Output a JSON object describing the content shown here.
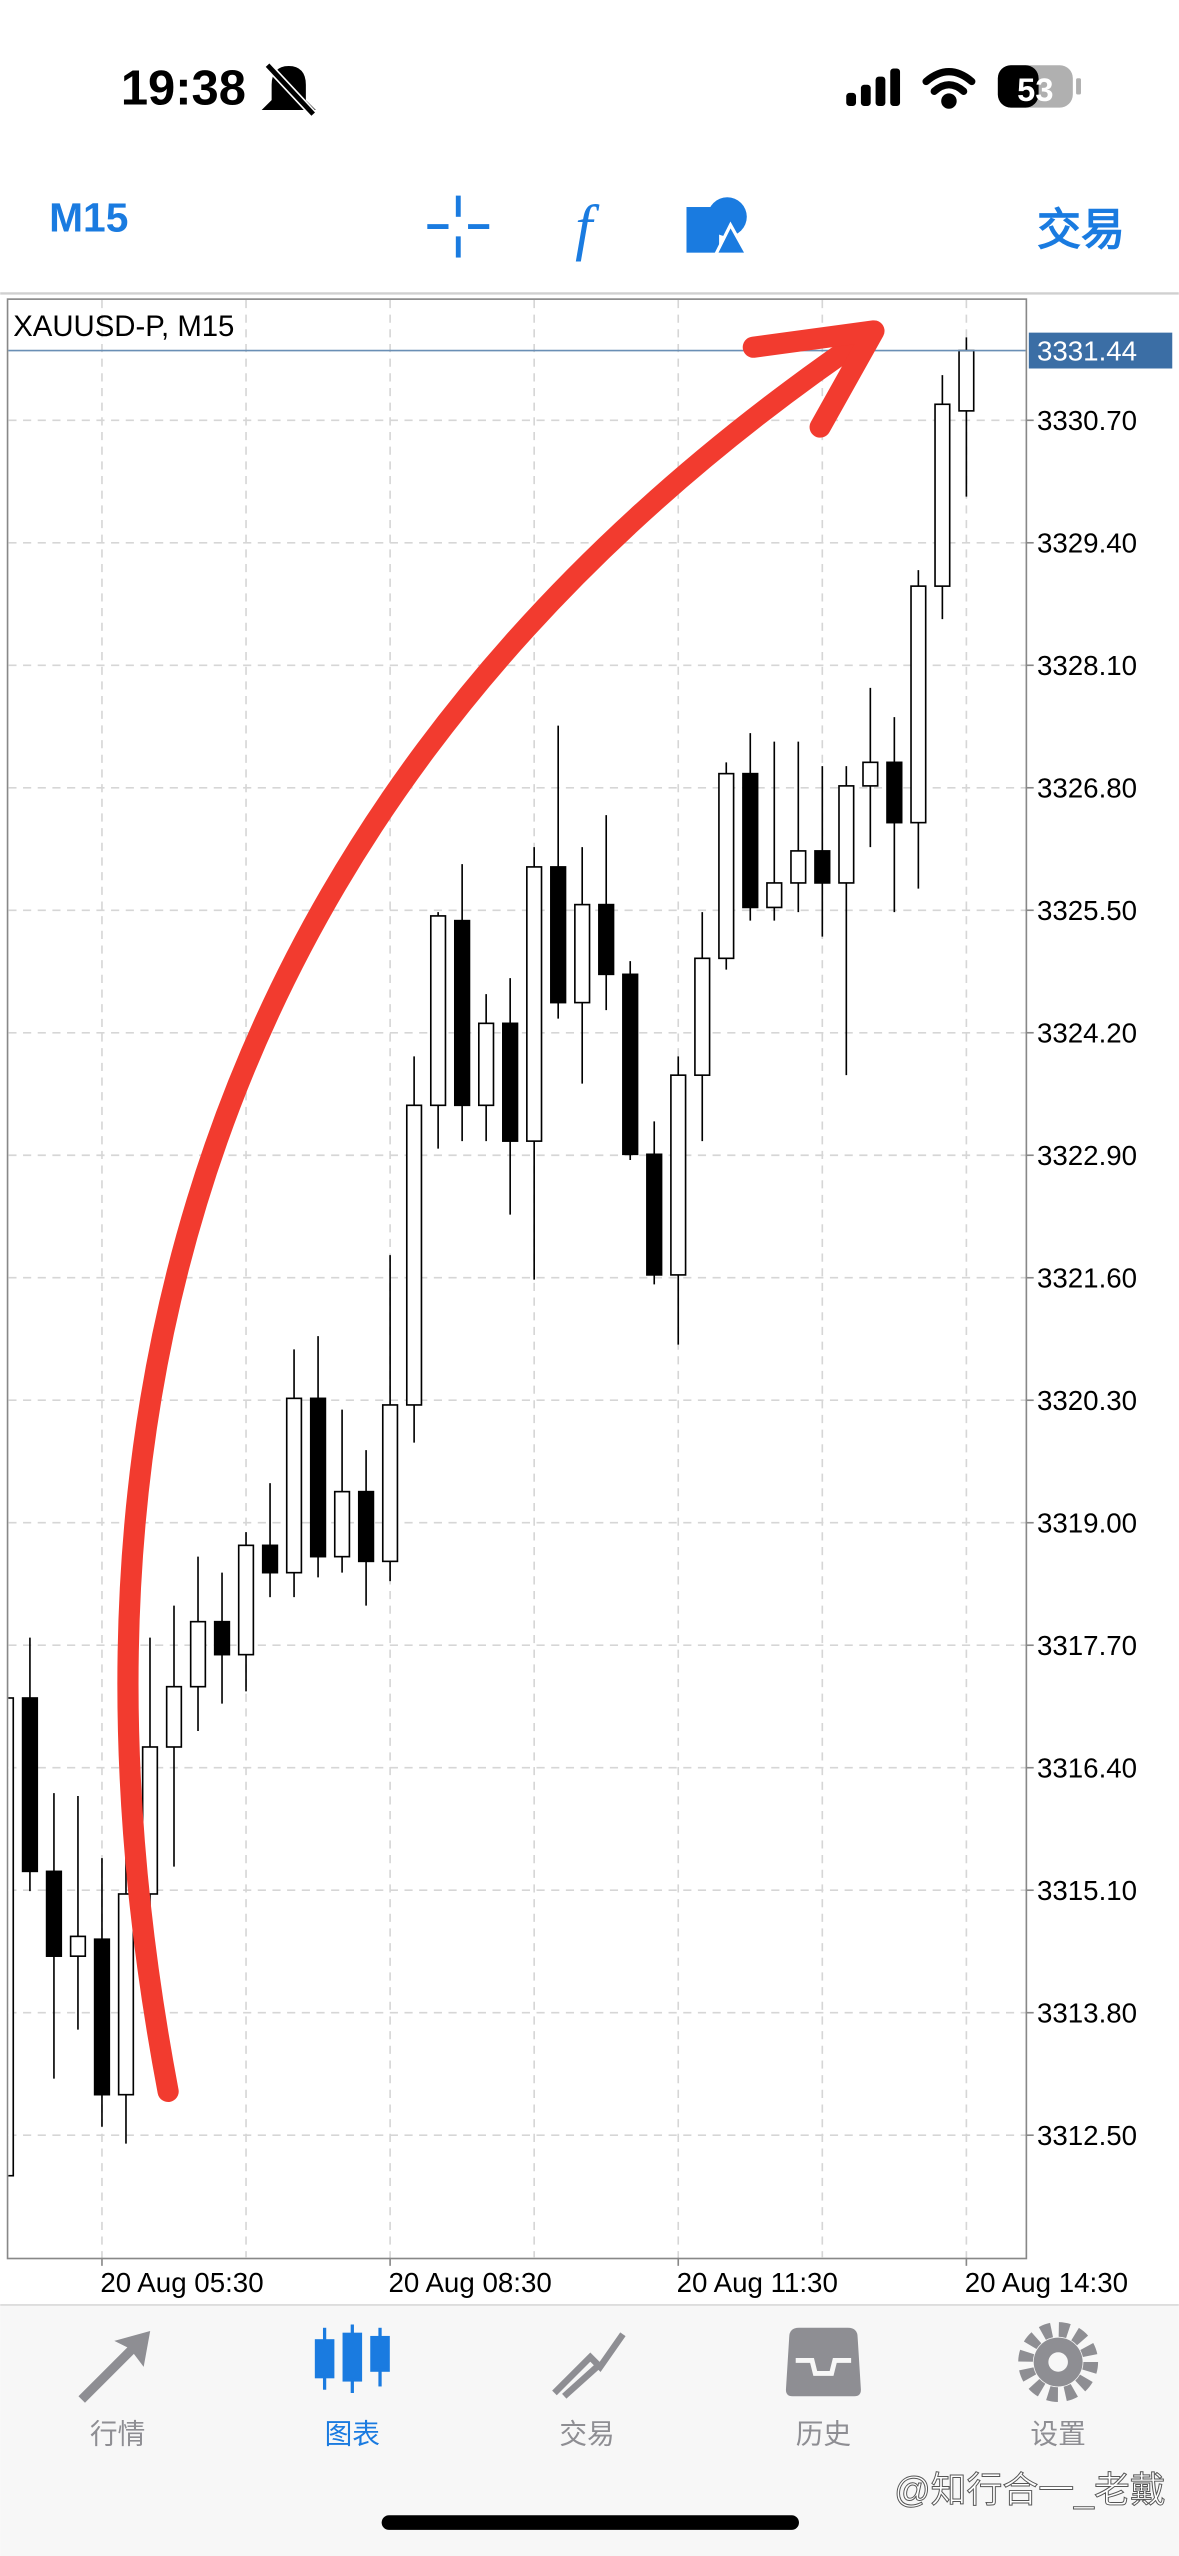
{
  "status_bar": {
    "time": "19:38",
    "battery": "53"
  },
  "toolbar": {
    "timeframe": "M15",
    "trade": "交易"
  },
  "chart_data": {
    "type": "candlestick",
    "title": "XAUUSD-P, M15",
    "categories": [
      null,
      null,
      null,
      null,
      "20 Aug 05:30",
      null,
      null,
      null,
      null,
      null,
      null,
      null,
      null,
      null,
      null,
      null,
      "20 Aug 08:30",
      null,
      null,
      null,
      null,
      null,
      null,
      null,
      null,
      null,
      null,
      null,
      "20 Aug 11:30",
      null,
      null,
      null,
      null,
      null,
      null,
      null,
      null,
      null,
      null,
      null,
      "20 Aug 14:30"
    ],
    "open": [
      3312.07,
      3317.14,
      3315.3,
      3314.4,
      3314.58,
      3312.93,
      3315.06,
      3316.62,
      3317.26,
      3317.95,
      3317.6,
      3318.76,
      3318.47,
      3320.32,
      3318.64,
      3319.33,
      3318.59,
      3320.25,
      3323.43,
      3325.39,
      3323.43,
      3324.3,
      3323.05,
      3325.96,
      3324.52,
      3325.56,
      3324.82,
      3322.91,
      3321.63,
      3323.75,
      3324.99,
      3326.95,
      3325.53,
      3325.79,
      3326.13,
      3325.79,
      3326.82,
      3327.07,
      3326.43,
      3328.94,
      3330.8
    ],
    "high": [
      3317.2,
      3317.78,
      3316.13,
      3316.1,
      3315.44,
      3315.44,
      3317.78,
      3318.12,
      3318.64,
      3318.47,
      3318.9,
      3319.42,
      3320.84,
      3320.98,
      3320.2,
      3319.77,
      3321.84,
      3323.95,
      3325.48,
      3325.99,
      3324.61,
      3324.78,
      3326.17,
      3327.46,
      3326.17,
      3326.51,
      3324.96,
      3323.26,
      3323.95,
      3325.48,
      3327.07,
      3327.38,
      3327.29,
      3327.29,
      3327.03,
      3327.03,
      3327.86,
      3327.55,
      3329.11,
      3331.18,
      3331.58
    ],
    "low": [
      3311.9,
      3315.09,
      3313.1,
      3313.62,
      3312.59,
      3312.41,
      3314.58,
      3315.35,
      3316.79,
      3317.08,
      3317.21,
      3318.21,
      3318.21,
      3318.42,
      3318.47,
      3318.12,
      3318.38,
      3319.85,
      3322.97,
      3323.05,
      3323.05,
      3322.27,
      3321.58,
      3324.35,
      3323.66,
      3324.44,
      3322.85,
      3321.53,
      3320.89,
      3323.05,
      3324.87,
      3325.39,
      3325.39,
      3325.48,
      3325.22,
      3323.75,
      3326.17,
      3325.48,
      3325.73,
      3328.59,
      3329.89
    ],
    "close": [
      3317.14,
      3315.3,
      3314.4,
      3314.61,
      3312.93,
      3315.06,
      3316.62,
      3317.26,
      3317.95,
      3317.6,
      3318.76,
      3318.47,
      3320.32,
      3318.64,
      3319.33,
      3318.59,
      3320.25,
      3323.43,
      3325.44,
      3323.43,
      3324.3,
      3323.05,
      3325.96,
      3324.52,
      3325.56,
      3324.82,
      3322.91,
      3321.63,
      3323.75,
      3324.99,
      3326.95,
      3325.53,
      3325.79,
      3326.13,
      3325.79,
      3326.82,
      3327.07,
      3326.43,
      3328.94,
      3330.87,
      3331.44
    ],
    "up_color": "#ffffff",
    "down_color": "#000000",
    "ylim": [
      3311.2,
      3331.96
    ],
    "yticks": [
      {
        "value": 3330.7,
        "label": "3330.70"
      },
      {
        "value": 3329.4,
        "label": "3329.40"
      },
      {
        "value": 3328.1,
        "label": "3328.10"
      },
      {
        "value": 3326.8,
        "label": "3326.80"
      },
      {
        "value": 3325.5,
        "label": "3325.50"
      },
      {
        "value": 3324.2,
        "label": "3324.20"
      },
      {
        "value": 3322.9,
        "label": "3322.90"
      },
      {
        "value": 3321.6,
        "label": "3321.60"
      },
      {
        "value": 3320.3,
        "label": "3320.30"
      },
      {
        "value": 3319,
        "label": "3319.00"
      },
      {
        "value": 3317.7,
        "label": "3317.70"
      },
      {
        "value": 3316.4,
        "label": "3316.40"
      },
      {
        "value": 3315.1,
        "label": "3315.10"
      },
      {
        "value": 3313.8,
        "label": "3313.80"
      },
      {
        "value": 3312.5,
        "label": "3312.50"
      }
    ],
    "last_price": 3331.44,
    "grid": true
  },
  "tab_bar": {
    "tabs": [
      "行情",
      "图表",
      "交易",
      "历史",
      "设置"
    ],
    "active": 1
  },
  "watermark": "@知行合一_老戴"
}
